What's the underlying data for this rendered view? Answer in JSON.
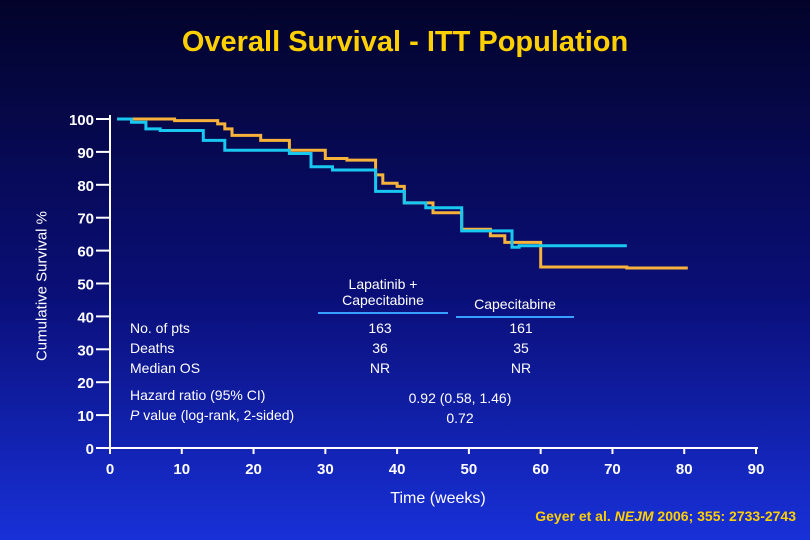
{
  "chart_data": {
    "type": "line",
    "title": "Overall Survival - ITT Population",
    "xlabel": "Time (weeks)",
    "ylabel": "Cumulative Survival %",
    "xlim": [
      0,
      90
    ],
    "ylim": [
      0,
      100
    ],
    "xticks": [
      0,
      10,
      20,
      30,
      40,
      50,
      60,
      70,
      80,
      90
    ],
    "yticks": [
      0,
      10,
      20,
      30,
      40,
      50,
      60,
      70,
      80,
      90,
      100
    ],
    "series": [
      {
        "name": "Lapatinib + Capecitabine",
        "color": "#f7b23b",
        "x": [
          1,
          9,
          9,
          15,
          15,
          16,
          16,
          17,
          17,
          21,
          21,
          25,
          25,
          30,
          30,
          33,
          33,
          37,
          37,
          38,
          38,
          40,
          40,
          41,
          41,
          45,
          45,
          49,
          49,
          53,
          53,
          55,
          55,
          60,
          60,
          72,
          72,
          80.5
        ],
        "y": [
          100,
          100,
          99.5,
          99.5,
          98.5,
          98.5,
          97,
          97,
          95,
          95,
          93.5,
          93.5,
          90.5,
          90.5,
          88,
          88,
          87.5,
          87.5,
          83,
          83,
          80.5,
          80.5,
          79.5,
          79.5,
          74.5,
          74.5,
          71.5,
          71.5,
          66.5,
          66.5,
          64.5,
          64.5,
          62.5,
          62.5,
          55,
          55,
          54.7,
          54.7
        ]
      },
      {
        "name": "Capecitabine",
        "color": "#19c8f0",
        "x": [
          1,
          3,
          3,
          5,
          5,
          7,
          7,
          13,
          13,
          16,
          16,
          25,
          25,
          28,
          28,
          31,
          31,
          37,
          37,
          41,
          41,
          44,
          44,
          49,
          49,
          56,
          56,
          57,
          57,
          72
        ],
        "y": [
          100,
          100,
          99,
          99,
          97,
          97,
          96.5,
          96.5,
          93.5,
          93.5,
          90.5,
          90.5,
          89.5,
          89.5,
          85.5,
          85.5,
          84.5,
          84.5,
          78,
          78,
          74.5,
          74.5,
          73,
          73,
          66,
          66,
          61,
          61,
          61.5,
          61.5
        ]
      }
    ],
    "table": {
      "row_labels": [
        "No. of pts",
        "Deaths",
        "Median OS"
      ],
      "columns": [
        {
          "name": "Lapatinib +\nCapecitabine",
          "values": [
            "163",
            "36",
            "NR"
          ]
        },
        {
          "name": "Capecitabine",
          "values": [
            "161",
            "35",
            "NR"
          ]
        }
      ],
      "hr_label": "Hazard ratio (95% CI)",
      "p_label_italic": "P",
      "p_label_rest": " value (log-rank, 2-sided)",
      "hr_value": "0.92 (0.58, 1.46)",
      "p_value": "0.72"
    },
    "citation": {
      "authors": "Geyer et al. ",
      "journal": "NEJM",
      "ref": " 2006; 355: 2733-2743"
    }
  }
}
